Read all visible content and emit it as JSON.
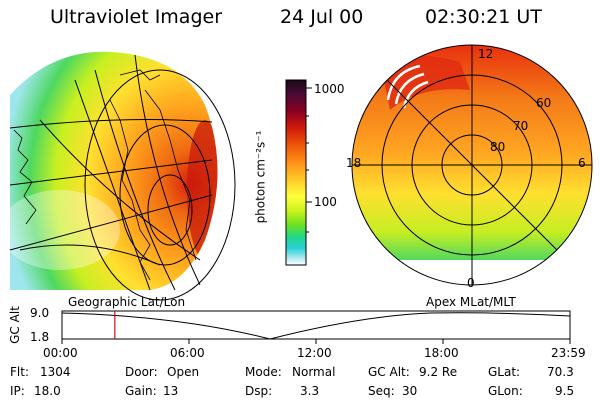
{
  "header": {
    "instrument": "Ultraviolet Imager",
    "date": "24 Jul 00",
    "time": "02:30:21 UT"
  },
  "colorbar": {
    "unit_label": "photon cm⁻²s⁻¹",
    "ticks": [
      "1000",
      "100"
    ],
    "scale": "log",
    "colors": [
      "#1a0a1a",
      "#4b0a36",
      "#8b0021",
      "#d11a0a",
      "#f05a0a",
      "#ff9a1a",
      "#ffd02a",
      "#ffff3a",
      "#c8f21e",
      "#6fe21e",
      "#1ed88a",
      "#2ad0d8",
      "#a8e8f0",
      "#ffffff"
    ]
  },
  "left_panel": {
    "caption": "Geographic Lat/Lon",
    "type": "geographic-projection"
  },
  "right_panel": {
    "caption": "Apex MLat/MLT",
    "mlt_labels": {
      "top": "12",
      "left": "18",
      "right": "6",
      "bottom": "0"
    },
    "lat_labels": [
      "60",
      "70",
      "80"
    ]
  },
  "altitude_plot": {
    "ylabel": "GC Alt",
    "yticks": [
      "9.0",
      "1.8"
    ],
    "xticks": [
      "00:00",
      "06:00",
      "12:00",
      "18:00",
      "23:59"
    ],
    "current_time_fraction": 0.104
  },
  "status": {
    "row1": [
      {
        "key": "Flt:",
        "value": "1304"
      },
      {
        "key": "Door:",
        "value": "Open"
      },
      {
        "key": "Mode:",
        "value": "Normal"
      },
      {
        "key": "GC Alt:",
        "value": "9.2 Re"
      },
      {
        "key": "GLat:",
        "value": "70.3"
      }
    ],
    "row2": [
      {
        "key": "IP:",
        "value": "18.0"
      },
      {
        "key": "Gain:",
        "value": "13"
      },
      {
        "key": "Dsp:",
        "value": "3.3"
      },
      {
        "key": "Seq:",
        "value": "30"
      },
      {
        "key": "GLon:",
        "value": "9.5"
      }
    ]
  }
}
